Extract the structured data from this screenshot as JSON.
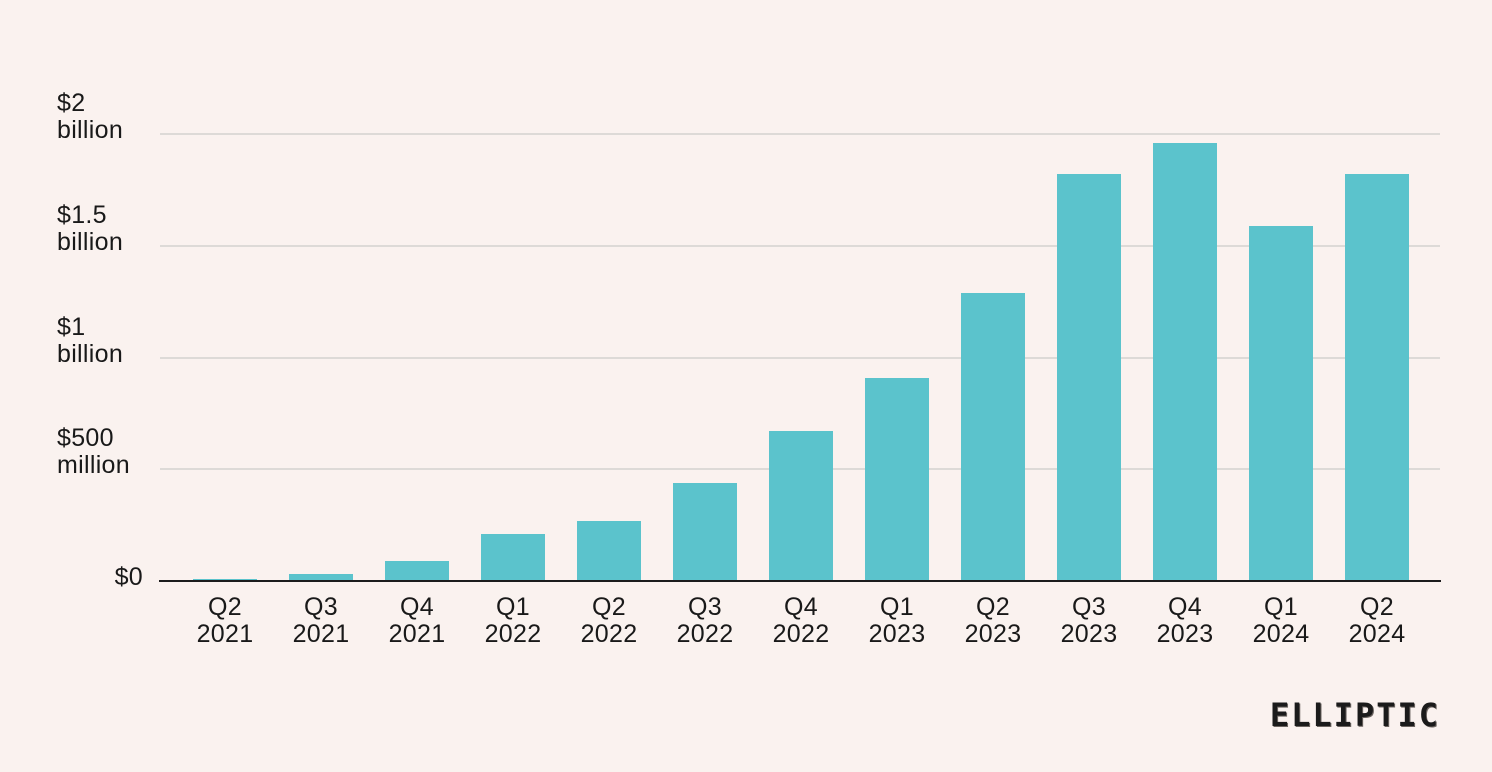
{
  "chart_data": {
    "type": "bar",
    "categories": [
      "Q2 2021",
      "Q3 2021",
      "Q4 2021",
      "Q1 2022",
      "Q2 2022",
      "Q3 2022",
      "Q4 2022",
      "Q1 2023",
      "Q2 2023",
      "Q3 2023",
      "Q4 2023",
      "Q1 2024",
      "Q2 2024"
    ],
    "values": [
      0.01,
      0.03,
      0.09,
      0.21,
      0.27,
      0.44,
      0.67,
      0.91,
      1.29,
      1.82,
      1.96,
      1.59,
      1.82
    ],
    "values_unit": "USD billions",
    "title": "",
    "xlabel": "",
    "ylabel": "",
    "ylim": [
      0,
      2
    ],
    "yticks": [
      {
        "value": 0,
        "label": "$0",
        "lines": [
          "$0"
        ]
      },
      {
        "value": 0.5,
        "label": "$500 million",
        "lines": [
          "$500",
          "million"
        ]
      },
      {
        "value": 1,
        "label": "$1 billion",
        "lines": [
          "$1",
          "billion"
        ]
      },
      {
        "value": 1.5,
        "label": "$1.5 billion",
        "lines": [
          "$1.5",
          "billion"
        ]
      },
      {
        "value": 2,
        "label": "$2 billion",
        "lines": [
          "$2",
          "billion"
        ]
      }
    ],
    "grid": "horizontal",
    "legend": "none",
    "bar_color": "#5BC3CC",
    "background_color": "#FAF2EF",
    "gridline_color": "#DDDAD7",
    "axis_color": "#1C1C1C"
  },
  "branding": {
    "logo_text": "ELLIPTIC"
  }
}
